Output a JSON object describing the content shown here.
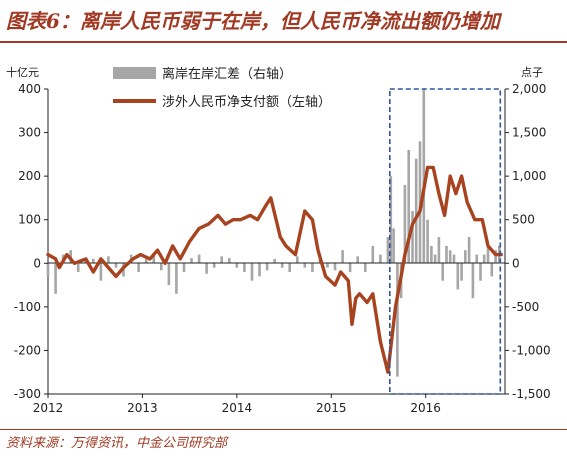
{
  "header": {
    "title": "图表6：离岸人民币弱于在岸，但人民币净流出额仍增加"
  },
  "footer": {
    "source": "资料来源：万得资讯，中金公司研究部"
  },
  "chart_data": {
    "type": "bar+line",
    "title": "图表6：离岸人民币弱于在岸，但人民币净流出额仍增加",
    "x_axis": {
      "ticks": [
        "2012",
        "2013",
        "2014",
        "2015",
        "2016"
      ],
      "range": [
        "2012-01",
        "2016-11"
      ]
    },
    "left_axis": {
      "unit": "十亿元",
      "min": -300,
      "max": 400,
      "step": 100,
      "tick_labels": [
        "400",
        "300",
        "200",
        "100",
        "0",
        "-100",
        "-200",
        "-300"
      ]
    },
    "right_axis": {
      "unit": "点子",
      "min": -1500,
      "max": 2000,
      "step": 500,
      "tick_labels": [
        "2,000",
        "1,500",
        "1,000",
        "500",
        "0",
        "-500",
        "-1,000",
        "-1,500"
      ]
    },
    "grid": false,
    "legend_position": "top-center",
    "highlight_box": {
      "x_from": 2015.62,
      "x_to": 2016.79,
      "color": "#2f5597",
      "style": "dashed"
    },
    "series": [
      {
        "name": "离岸在岸汇差（右轴）",
        "axis": "right",
        "kind": "bar",
        "color": "#a6a6a6",
        "x": [
          2012.0,
          2012.08,
          2012.16,
          2012.24,
          2012.32,
          2012.4,
          2012.48,
          2012.56,
          2012.64,
          2012.72,
          2012.8,
          2012.88,
          2012.96,
          2013.04,
          2013.12,
          2013.2,
          2013.28,
          2013.36,
          2013.44,
          2013.52,
          2013.6,
          2013.68,
          2013.76,
          2013.84,
          2013.92,
          2014.0,
          2014.08,
          2014.16,
          2014.24,
          2014.32,
          2014.4,
          2014.48,
          2014.56,
          2014.64,
          2014.72,
          2014.8,
          2014.88,
          2014.96,
          2015.04,
          2015.12,
          2015.2,
          2015.28,
          2015.36,
          2015.44,
          2015.52,
          2015.6,
          2015.63,
          2015.66,
          2015.7,
          2015.74,
          2015.78,
          2015.82,
          2015.86,
          2015.9,
          2015.94,
          2015.98,
          2016.02,
          2016.06,
          2016.1,
          2016.14,
          2016.18,
          2016.22,
          2016.26,
          2016.3,
          2016.34,
          2016.38,
          2016.42,
          2016.46,
          2016.5,
          2016.54,
          2016.58,
          2016.62,
          2016.66,
          2016.7,
          2016.74,
          2016.78
        ],
        "values": [
          -150,
          -350,
          100,
          150,
          -100,
          60,
          50,
          -200,
          80,
          -50,
          -150,
          100,
          -100,
          50,
          120,
          -80,
          -250,
          -350,
          -100,
          60,
          100,
          -120,
          -50,
          80,
          60,
          -50,
          -100,
          -200,
          -150,
          -80,
          50,
          -50,
          -100,
          80,
          -50,
          -100,
          50,
          -50,
          -80,
          150,
          -100,
          80,
          -100,
          200,
          100,
          300,
          1000,
          400,
          -1300,
          -400,
          900,
          1300,
          600,
          1200,
          1400,
          2000,
          500,
          200,
          100,
          300,
          -200,
          200,
          150,
          100,
          -300,
          -200,
          150,
          300,
          -400,
          100,
          -200,
          100,
          200,
          -150,
          150,
          200
        ]
      },
      {
        "name": "涉外人民币净支付额（左轴）",
        "axis": "left",
        "kind": "line",
        "color": "#a8431f",
        "x": [
          2012.0,
          2012.08,
          2012.12,
          2012.2,
          2012.28,
          2012.4,
          2012.48,
          2012.56,
          2012.64,
          2012.72,
          2012.8,
          2012.9,
          2012.98,
          2013.08,
          2013.16,
          2013.24,
          2013.32,
          2013.4,
          2013.5,
          2013.6,
          2013.7,
          2013.8,
          2013.88,
          2013.96,
          2014.04,
          2014.14,
          2014.22,
          2014.3,
          2014.36,
          2014.46,
          2014.52,
          2014.62,
          2014.72,
          2014.8,
          2014.86,
          2014.94,
          2015.04,
          2015.1,
          2015.18,
          2015.22,
          2015.26,
          2015.3,
          2015.38,
          2015.44,
          2015.52,
          2015.6,
          2015.68,
          2015.74,
          2015.78,
          2015.86,
          2015.94,
          2016.02,
          2016.08,
          2016.14,
          2016.2,
          2016.26,
          2016.32,
          2016.38,
          2016.44,
          2016.52,
          2016.6,
          2016.66,
          2016.74,
          2016.8
        ],
        "values": [
          20,
          10,
          -10,
          20,
          0,
          10,
          -20,
          10,
          -10,
          -30,
          -10,
          10,
          20,
          10,
          30,
          0,
          40,
          10,
          50,
          80,
          90,
          110,
          90,
          100,
          100,
          110,
          100,
          130,
          150,
          60,
          40,
          20,
          120,
          100,
          30,
          -30,
          -50,
          -20,
          -40,
          -140,
          -80,
          -70,
          -90,
          -70,
          -180,
          -250,
          -100,
          -30,
          20,
          90,
          120,
          220,
          220,
          160,
          110,
          200,
          160,
          200,
          140,
          100,
          100,
          40,
          20,
          20
        ]
      }
    ]
  }
}
